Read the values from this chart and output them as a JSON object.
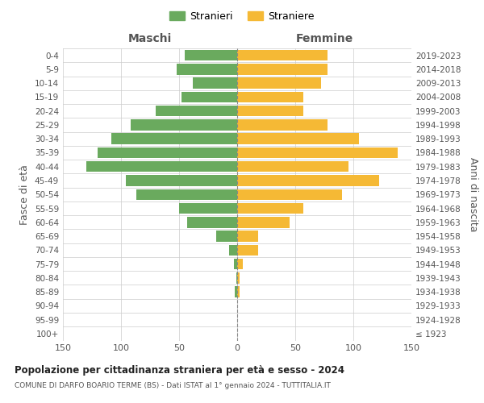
{
  "age_groups": [
    "100+",
    "95-99",
    "90-94",
    "85-89",
    "80-84",
    "75-79",
    "70-74",
    "65-69",
    "60-64",
    "55-59",
    "50-54",
    "45-49",
    "40-44",
    "35-39",
    "30-34",
    "25-29",
    "20-24",
    "15-19",
    "10-14",
    "5-9",
    "0-4"
  ],
  "birth_years": [
    "≤ 1923",
    "1924-1928",
    "1929-1933",
    "1934-1938",
    "1939-1943",
    "1944-1948",
    "1949-1953",
    "1954-1958",
    "1959-1963",
    "1964-1968",
    "1969-1973",
    "1974-1978",
    "1979-1983",
    "1984-1988",
    "1989-1993",
    "1994-1998",
    "1999-2003",
    "2004-2008",
    "2009-2013",
    "2014-2018",
    "2019-2023"
  ],
  "maschi": [
    0,
    0,
    0,
    2,
    1,
    3,
    7,
    18,
    43,
    50,
    87,
    96,
    130,
    120,
    108,
    92,
    70,
    48,
    38,
    52,
    45
  ],
  "femmine": [
    0,
    0,
    0,
    2,
    2,
    5,
    18,
    18,
    45,
    57,
    90,
    122,
    96,
    138,
    105,
    78,
    57,
    57,
    72,
    78,
    78
  ],
  "male_color": "#6aaa5e",
  "female_color": "#f5b935",
  "title_main": "Popolazione per cittadinanza straniera per età e sesso - 2024",
  "title_sub": "COMUNE DI DARFO BOARIO TERME (BS) - Dati ISTAT al 1° gennaio 2024 - TUTTITALIA.IT",
  "legend_male": "Stranieri",
  "legend_female": "Straniere",
  "label_left": "Maschi",
  "label_right": "Femmine",
  "ylabel_left": "Fasce di età",
  "ylabel_right": "Anni di nascita",
  "xlim": 150,
  "bg_color": "#ffffff",
  "grid_color": "#cccccc",
  "dashed_color": "#888888"
}
